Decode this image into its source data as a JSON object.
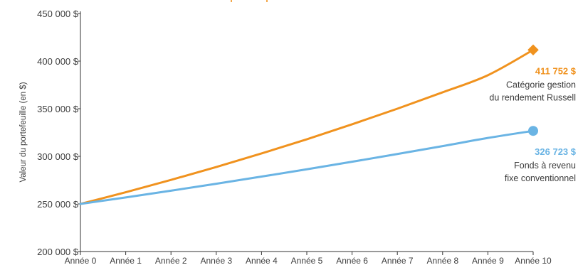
{
  "chart_data": {
    "type": "line",
    "title": "",
    "xlabel": "",
    "ylabel": "Valeur du portefeuille (en $)",
    "categories": [
      "Année 0",
      "Année 1",
      "Année 2",
      "Année 3",
      "Année 4",
      "Année 5",
      "Année 6",
      "Année 7",
      "Année 8",
      "Année 9",
      "Année 10"
    ],
    "ylim": [
      200000,
      450000
    ],
    "yticks": [
      200000,
      250000,
      300000,
      350000,
      400000,
      450000
    ],
    "ytick_labels": [
      "200 000 $",
      "250 000 $",
      "300 000 $",
      "350 000 $",
      "400 000 $",
      "450 000 $"
    ],
    "grid": false,
    "series": [
      {
        "name_lines": [
          "Catégorie gestion",
          "du rendement Russell"
        ],
        "end_label": "411 752 $",
        "color": "#f0921e",
        "marker": "diamond",
        "values": [
          250000,
          262300,
          275200,
          288800,
          303000,
          317900,
          333600,
          350000,
          367200,
          385200,
          411752
        ]
      },
      {
        "name_lines": [
          "Fonds à revenu",
          "fixe conventionnel"
        ],
        "end_label": "326 723 $",
        "color": "#6ab4e4",
        "marker": "circle",
        "values": [
          250000,
          256800,
          263900,
          271200,
          278700,
          286400,
          294300,
          302400,
          310700,
          319300,
          326723
        ]
      }
    ]
  }
}
